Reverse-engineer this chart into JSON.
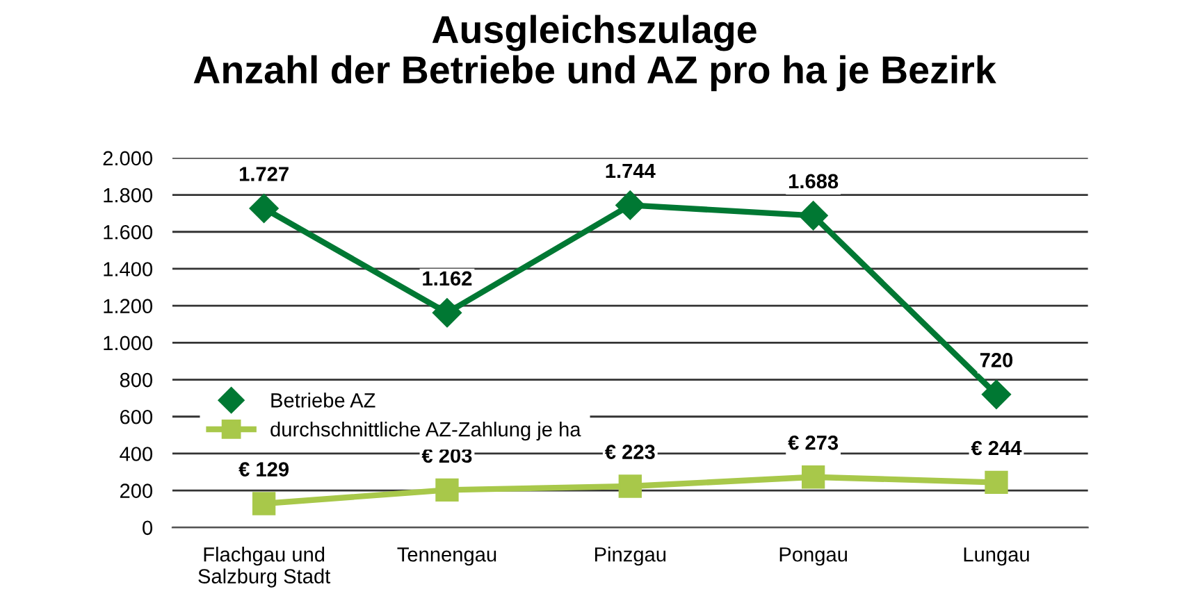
{
  "chart_data": {
    "type": "line",
    "title": "Ausgleichszulage\nAnzahl der Betriebe und AZ pro ha je Bezirk",
    "categories": [
      "Flachgau und\nSalzburg Stadt",
      "Tennengau",
      "Pinzgau",
      "Pongau",
      "Lungau"
    ],
    "series": [
      {
        "name": "Betriebe AZ",
        "color": "#007833",
        "marker": "diamond",
        "values": [
          1727,
          1162,
          1744,
          1688,
          720
        ],
        "value_labels": [
          "1.727",
          "1.162",
          "1.744",
          "1.688",
          "720"
        ]
      },
      {
        "name": "durchschnittliche AZ-Zahlung je ha",
        "color": "#a8c84a",
        "marker": "square",
        "values": [
          129,
          203,
          223,
          273,
          244
        ],
        "value_labels": [
          "€ 129",
          "€ 203",
          "€ 223",
          "€ 273",
          "€ 244"
        ]
      }
    ],
    "ylim": [
      0,
      2000
    ],
    "yticks": [
      0,
      200,
      400,
      600,
      800,
      {
        "value": 1000,
        "label": "1.000"
      },
      {
        "value": 1200,
        "label": "1.200"
      },
      {
        "value": 1400,
        "label": "1.400"
      },
      {
        "value": 1600,
        "label": "1.600"
      },
      {
        "value": 1800,
        "label": "1.800"
      },
      {
        "value": 2000,
        "label": "2.000"
      }
    ],
    "grid": "y",
    "legend": "center left",
    "line_style": "solid"
  }
}
